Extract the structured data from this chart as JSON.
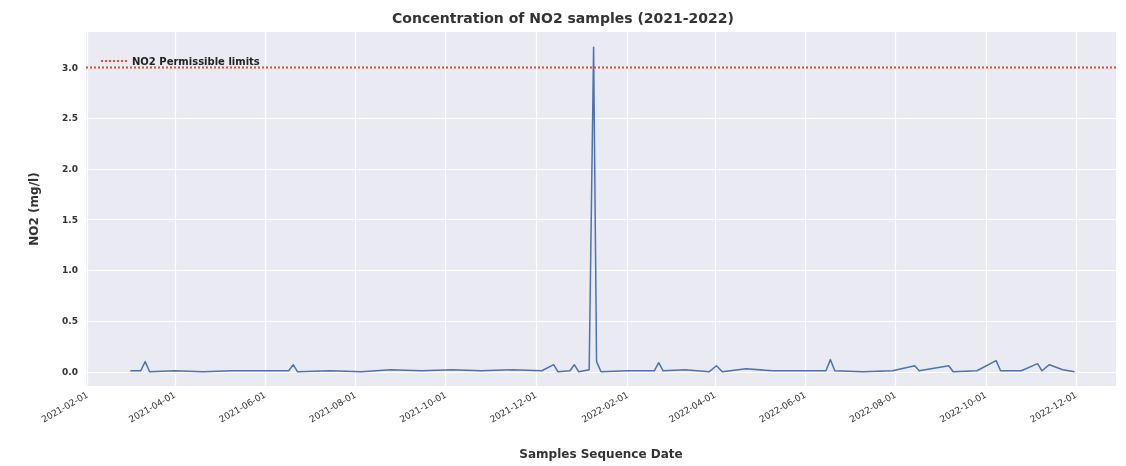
{
  "chart_data": {
    "type": "line",
    "title": "Concentration of NO2 samples (2021-2022)",
    "xlabel": "Samples Sequence Date",
    "ylabel": "NO2 (mg/l)",
    "xlim": [
      "2021-01-31",
      "2022-12-28"
    ],
    "ylim": [
      -0.14,
      3.35
    ],
    "xticks": [
      "2021-02-01",
      "2021-04-01",
      "2021-06-01",
      "2021-08-01",
      "2021-10-01",
      "2021-12-01",
      "2022-02-01",
      "2022-04-01",
      "2022-06-01",
      "2022-08-01",
      "2022-10-01",
      "2022-12-01"
    ],
    "yticks": [
      {
        "value": 0,
        "label": "0.0"
      },
      0.5,
      {
        "value": 1,
        "label": "1.0"
      },
      1.5,
      {
        "value": 2,
        "label": "2.0"
      },
      2.5,
      {
        "value": 3,
        "label": "3.0"
      }
    ],
    "grid": true,
    "legend": "top left",
    "marker": "none",
    "line_style": "solid",
    "x": [
      "2021-03-02",
      "2021-03-09",
      "2021-03-12",
      "2021-03-15",
      "2021-04-01",
      "2021-04-20",
      "2021-05-10",
      "2021-06-01",
      "2021-06-17",
      "2021-06-20",
      "2021-06-23",
      "2021-07-15",
      "2021-08-05",
      "2021-08-25",
      "2021-09-15",
      "2021-10-05",
      "2021-10-25",
      "2021-11-15",
      "2021-12-05",
      "2021-12-13",
      "2021-12-16",
      "2021-12-24",
      "2021-12-27",
      "2021-12-30",
      "2022-01-06",
      "2022-01-09",
      "2022-01-11",
      "2022-01-14",
      "2022-02-01",
      "2022-02-19",
      "2022-02-22",
      "2022-02-25",
      "2022-03-12",
      "2022-03-28",
      "2022-04-02",
      "2022-04-06",
      "2022-04-22",
      "2022-05-10",
      "2022-06-01",
      "2022-06-15",
      "2022-06-18",
      "2022-06-21",
      "2022-07-10",
      "2022-07-30",
      "2022-08-14",
      "2022-08-17",
      "2022-09-06",
      "2022-09-09",
      "2022-09-25",
      "2022-10-08",
      "2022-10-11",
      "2022-10-25",
      "2022-11-05",
      "2022-11-08",
      "2022-11-13",
      "2022-11-22",
      "2022-11-30"
    ],
    "series": [
      {
        "color": "#4c72b0",
        "values": [
          0.01,
          0.01,
          0.1,
          0.0,
          0.01,
          0.0,
          0.01,
          0.01,
          0.01,
          0.07,
          0.0,
          0.01,
          0.0,
          0.02,
          0.01,
          0.02,
          0.01,
          0.02,
          0.01,
          0.07,
          0.0,
          0.01,
          0.07,
          0.0,
          0.02,
          3.2,
          0.1,
          0.0,
          0.01,
          0.01,
          0.09,
          0.01,
          0.02,
          0.0,
          0.06,
          0.0,
          0.03,
          0.01,
          0.01,
          0.01,
          0.12,
          0.01,
          0.0,
          0.01,
          0.06,
          0.01,
          0.06,
          0.0,
          0.01,
          0.11,
          0.01,
          0.01,
          0.08,
          0.01,
          0.07,
          0.02,
          0.0
        ]
      }
    ],
    "ref_lines": [
      {
        "axis": "y",
        "value": 3.0,
        "label": "NO2 Permissible limits",
        "color": "#e24a33",
        "line_style": "dotted"
      }
    ]
  }
}
